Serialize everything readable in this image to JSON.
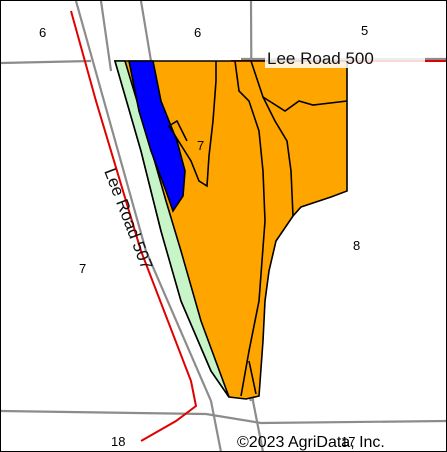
{
  "map": {
    "colors": {
      "field": "#ffa500",
      "soil_blue": "#0000ff",
      "soil_green": "#c8f5c8",
      "road": "#e00000",
      "section_line": "#8c8c8c",
      "soil_line": "#000000"
    },
    "section_labels": [
      {
        "text": "6"
      },
      {
        "text": "6"
      },
      {
        "text": "5"
      },
      {
        "text": "7"
      },
      {
        "text": "8"
      },
      {
        "text": "18"
      },
      {
        "text": "17"
      }
    ],
    "soil_labels": [
      {
        "text": "7"
      }
    ],
    "roads": [
      {
        "name": "Lee Road 500"
      },
      {
        "name": "Lee Road 507"
      }
    ],
    "copyright": "©2023 AgriData, Inc."
  }
}
